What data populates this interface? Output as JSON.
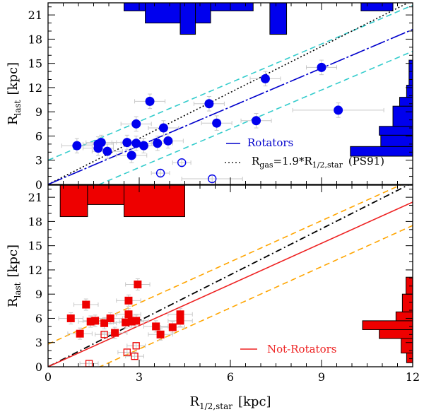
{
  "chart_data": [
    {
      "type": "scatter",
      "panel": "top",
      "xlabel_main": "",
      "ylabel_main": "R",
      "ylabel_sub": "last",
      "ylabel_unit": "[kpc]",
      "xlim": [
        0,
        12
      ],
      "ylim": [
        0,
        22.5
      ],
      "yticks": [
        "0",
        "3",
        "6",
        "9",
        "12",
        "15",
        "18",
        "21"
      ],
      "colors": {
        "points": "#0000ee",
        "fit": "#0000cc",
        "band": "#33cccc",
        "ps91": "#000000"
      },
      "series": [
        {
          "name": "Rotators",
          "marker": "filled-circle",
          "points": [
            [
              0.95,
              4.8,
              0.5,
              0.9
            ],
            [
              1.65,
              5.0,
              0.5,
              0.9
            ],
            [
              1.65,
              4.5,
              0.5,
              0.9
            ],
            [
              1.75,
              5.2,
              0.5,
              0.9
            ],
            [
              1.95,
              4.1,
              0.5,
              0.9
            ],
            [
              2.6,
              5.2,
              0.5,
              0.9
            ],
            [
              2.75,
              3.6,
              0.5,
              0.9
            ],
            [
              2.9,
              7.5,
              0.5,
              0.9
            ],
            [
              2.9,
              5.1,
              0.5,
              0.9
            ],
            [
              3.15,
              4.8,
              0.5,
              0.9
            ],
            [
              3.35,
              10.3,
              0.5,
              0.9
            ],
            [
              3.6,
              5.1,
              0.5,
              0.9
            ],
            [
              3.8,
              7.0,
              0.5,
              0.9
            ],
            [
              3.95,
              5.4,
              0.5,
              0.9
            ],
            [
              5.3,
              10.0,
              0.5,
              0.9
            ],
            [
              5.55,
              7.6,
              0.5,
              0.9
            ],
            [
              6.85,
              7.9,
              0.5,
              0.9
            ],
            [
              7.15,
              13.1,
              0.5,
              0.9
            ],
            [
              9.0,
              14.5,
              0.5,
              0.9
            ],
            [
              9.55,
              9.2,
              1.5,
              0.9
            ]
          ]
        },
        {
          "name": "",
          "marker": "open-circle",
          "points": [
            [
              3.7,
              1.4,
              0.3,
              0.4
            ],
            [
              4.4,
              2.7,
              0.3,
              0.4
            ],
            [
              5.4,
              0.7,
              1.0,
              0.4
            ]
          ]
        }
      ],
      "fit": {
        "slope": 1.6,
        "intercept": 0.0
      },
      "fit_band": {
        "upper_intercept": 3.0,
        "lower_intercept": -2.7
      },
      "reference": {
        "slope": 1.9,
        "intercept": 0.0
      },
      "histogram_top": [
        {
          "x0": 2.5,
          "x1": 3.2,
          "h": 1.0
        },
        {
          "x0": 3.2,
          "x1": 4.35,
          "h": 2.5
        },
        {
          "x0": 4.35,
          "x1": 4.85,
          "h": 3.9
        },
        {
          "x0": 4.85,
          "x1": 5.35,
          "h": 2.5
        },
        {
          "x0": 5.35,
          "x1": 6.75,
          "h": 1.0
        },
        {
          "x0": 7.3,
          "x1": 7.85,
          "h": 3.9
        },
        {
          "x0": 10.3,
          "x1": 11.35,
          "h": 1.0
        }
      ],
      "histogram_right": [
        {
          "y0": 3.5,
          "y1": 4.7,
          "w": 2.05
        },
        {
          "y0": 4.7,
          "y1": 6.1,
          "w": 1.05
        },
        {
          "y0": 6.1,
          "y1": 7.2,
          "w": 1.1
        },
        {
          "y0": 7.2,
          "y1": 9.7,
          "w": 0.65
        },
        {
          "y0": 9.7,
          "y1": 10.8,
          "w": 0.43
        },
        {
          "y0": 10.8,
          "y1": 12.3,
          "w": 0.2
        },
        {
          "y0": 12.3,
          "y1": 15.4,
          "w": 0.12
        }
      ],
      "legend": {
        "line1": "Rotators",
        "line2_main": "R",
        "line2_sub1": "gas",
        "line2_mid": "=1.9*R",
        "line2_sub2": "1/2,star",
        "line2_tail": "(PS91)"
      }
    },
    {
      "type": "scatter",
      "panel": "bottom",
      "xlabel_main": "R",
      "xlabel_sub": "1/2,star",
      "xlabel_unit": "[kpc]",
      "ylabel_main": "R",
      "ylabel_sub": "last",
      "ylabel_unit": "[kpc]",
      "xlim": [
        0,
        12
      ],
      "ylim": [
        0,
        22.5
      ],
      "xticks": [
        "0",
        "3",
        "6",
        "9",
        "12"
      ],
      "yticks": [
        "0",
        "3",
        "6",
        "9",
        "12",
        "15",
        "18",
        "21"
      ],
      "colors": {
        "points": "#ee0000",
        "fit": "#ee2222",
        "band": "#ffa500",
        "ps91": "#000000"
      },
      "series": [
        {
          "name": "Not-Rotators",
          "marker": "filled-square",
          "points": [
            [
              0.75,
              6.0,
              0.4,
              0.7
            ],
            [
              1.05,
              4.1,
              0.4,
              0.7
            ],
            [
              1.25,
              7.7,
              0.4,
              0.7
            ],
            [
              1.4,
              5.6,
              0.4,
              0.7
            ],
            [
              1.55,
              5.7,
              0.4,
              0.7
            ],
            [
              1.85,
              5.4,
              0.4,
              0.7
            ],
            [
              2.05,
              6.0,
              0.4,
              0.7
            ],
            [
              2.2,
              4.2,
              0.4,
              0.7
            ],
            [
              2.55,
              5.5,
              0.4,
              0.7
            ],
            [
              2.65,
              8.2,
              0.4,
              0.7
            ],
            [
              2.65,
              6.5,
              0.4,
              0.7
            ],
            [
              2.75,
              5.6,
              0.4,
              0.7
            ],
            [
              2.9,
              5.7,
              0.4,
              0.7
            ],
            [
              2.95,
              10.2,
              0.4,
              0.7
            ],
            [
              3.55,
              5.0,
              0.4,
              0.7
            ],
            [
              3.7,
              4.0,
              0.4,
              0.7
            ],
            [
              4.1,
              4.9,
              0.4,
              0.7
            ],
            [
              4.35,
              5.7,
              0.4,
              0.7
            ],
            [
              4.35,
              6.5,
              0.4,
              0.7
            ]
          ]
        },
        {
          "name": "",
          "marker": "open-square",
          "points": [
            [
              1.35,
              0.4,
              0.3,
              0.4
            ],
            [
              1.85,
              4.0,
              0.3,
              0.4
            ],
            [
              2.6,
              1.8,
              0.3,
              0.4
            ],
            [
              2.85,
              1.3,
              0.3,
              0.4
            ],
            [
              2.9,
              2.6,
              0.3,
              0.4
            ]
          ]
        }
      ],
      "fit": {
        "slope": 1.7,
        "intercept": 0.0
      },
      "fit_band": {
        "upper_intercept": 2.8,
        "lower_intercept": -2.9
      },
      "reference": {
        "slope": 1.9,
        "intercept": 0.0
      },
      "histogram_top": [
        {
          "x0": 0.4,
          "x1": 1.3,
          "h": 3.9
        },
        {
          "x0": 1.3,
          "x1": 2.5,
          "h": 2.4
        },
        {
          "x0": 2.5,
          "x1": 4.5,
          "h": 3.9
        }
      ],
      "histogram_right": [
        {
          "y0": 3.5,
          "y1": 4.6,
          "w": 1.1
        },
        {
          "y0": 4.6,
          "y1": 5.7,
          "w": 1.65
        },
        {
          "y0": 5.7,
          "y1": 6.8,
          "w": 0.55
        },
        {
          "y0": 6.8,
          "y1": 9.0,
          "w": 0.34
        },
        {
          "y0": 9.0,
          "y1": 11.1,
          "w": 0.22
        },
        {
          "y0": 1.7,
          "y1": 3.5,
          "w": 0.38
        },
        {
          "y0": 0.5,
          "y1": 1.7,
          "w": 0.2
        }
      ],
      "legend": {
        "line1": "Not-Rotators"
      }
    }
  ]
}
